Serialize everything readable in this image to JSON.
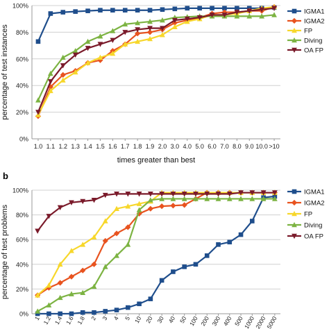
{
  "panel_labels": {
    "b": "b"
  },
  "chart_data": [
    {
      "type": "line",
      "panel": "a",
      "xlabel": "times greater than best",
      "ylabel": "percentage of test instances",
      "categories": [
        "1.0",
        "1.1",
        "1.2",
        "1.3",
        "1.4",
        "1.5",
        "1.6",
        "1.7",
        "1.8",
        "1.9",
        "2.0",
        "3.0",
        "4.0",
        "5.0",
        "6.0",
        "7.0",
        "8.0",
        "9.0",
        "10.0",
        ">10"
      ],
      "yticks": [
        "0%",
        "20%",
        "40%",
        "60%",
        "80%",
        "100%"
      ],
      "ylim": [
        0,
        100
      ],
      "grid": true,
      "legend": "right",
      "series": [
        {
          "name": "IGMA1",
          "color": "#1f4e8c",
          "marker": "square",
          "values": [
            73,
            94,
            95,
            95.5,
            96,
            96.5,
            96.5,
            96.5,
            96.5,
            96.5,
            97,
            97.5,
            98,
            98,
            98,
            98,
            98,
            98,
            98,
            98.5
          ]
        },
        {
          "name": "IGMA2",
          "color": "#e8531f",
          "marker": "diamond",
          "values": [
            17,
            39,
            48,
            51,
            57,
            59,
            66,
            71,
            79,
            80,
            82,
            87,
            89,
            91,
            94,
            95,
            95,
            96,
            96,
            99
          ]
        },
        {
          "name": "FP",
          "color": "#f7d72b",
          "marker": "triangle",
          "values": [
            18,
            36,
            44,
            50,
            57,
            61,
            64,
            71,
            73,
            75,
            78,
            84,
            88,
            90,
            93,
            93,
            94,
            96,
            98,
            99
          ]
        },
        {
          "name": "Diving",
          "color": "#7cb342",
          "marker": "triangle",
          "values": [
            29,
            49,
            61,
            66,
            73,
            77,
            81,
            86,
            87,
            88,
            89,
            91,
            91.5,
            92,
            92,
            92,
            92,
            92,
            92,
            93
          ]
        },
        {
          "name": "OA FP",
          "color": "#7a1a2a",
          "marker": "tri-down",
          "values": [
            20,
            43,
            55,
            63,
            68,
            71,
            74,
            80,
            82,
            83,
            83,
            89,
            90,
            91,
            93,
            93,
            95,
            96,
            97,
            98
          ]
        }
      ]
    },
    {
      "type": "line",
      "panel": "b",
      "xlabel": "",
      "ylabel": "percentage of test problems",
      "categories": [
        "1",
        "1.2",
        "1.4",
        "1.6",
        "1.8",
        "2",
        "3",
        "4",
        "5",
        "10",
        "20",
        "30",
        "40",
        "50",
        "100",
        "200",
        "300",
        "400",
        "500",
        "1000",
        "2000",
        "5000"
      ],
      "yticks": [
        "0%",
        "20%",
        "40%",
        "60%",
        "80%",
        "100%"
      ],
      "ylim": [
        0,
        100
      ],
      "grid": true,
      "legend": "right",
      "series": [
        {
          "name": "IGMA1",
          "color": "#1f4e8c",
          "marker": "square",
          "values": [
            0,
            0,
            0,
            0,
            1,
            1,
            2,
            3,
            5,
            8,
            12,
            27,
            34,
            38,
            40,
            47,
            56,
            58,
            64,
            75,
            94,
            95
          ]
        },
        {
          "name": "IGMA2",
          "color": "#e8531f",
          "marker": "diamond",
          "values": [
            15,
            21,
            25,
            30,
            35,
            40,
            59,
            65,
            70,
            81,
            85,
            87,
            87.5,
            88,
            93,
            98,
            98,
            98,
            98,
            98,
            98,
            98
          ]
        },
        {
          "name": "FP",
          "color": "#f7d72b",
          "marker": "triangle",
          "values": [
            15,
            23,
            40,
            51,
            56,
            62,
            75,
            85,
            87,
            89,
            91,
            98,
            98,
            98,
            98,
            98,
            98,
            98,
            98,
            98,
            98,
            98
          ]
        },
        {
          "name": "Diving",
          "color": "#7cb342",
          "marker": "triangle",
          "values": [
            2,
            7,
            13,
            16,
            17,
            22,
            38,
            47,
            56,
            84,
            92,
            93,
            93,
            93,
            93,
            93,
            93,
            93,
            93,
            93,
            93,
            93
          ]
        },
        {
          "name": "OA FP",
          "color": "#7a1a2a",
          "marker": "tri-down",
          "values": [
            67,
            79,
            86,
            90,
            91,
            92,
            96,
            97,
            97,
            97,
            97,
            97,
            97,
            97,
            97,
            97,
            97,
            97,
            98,
            98,
            98,
            98
          ]
        }
      ]
    }
  ]
}
